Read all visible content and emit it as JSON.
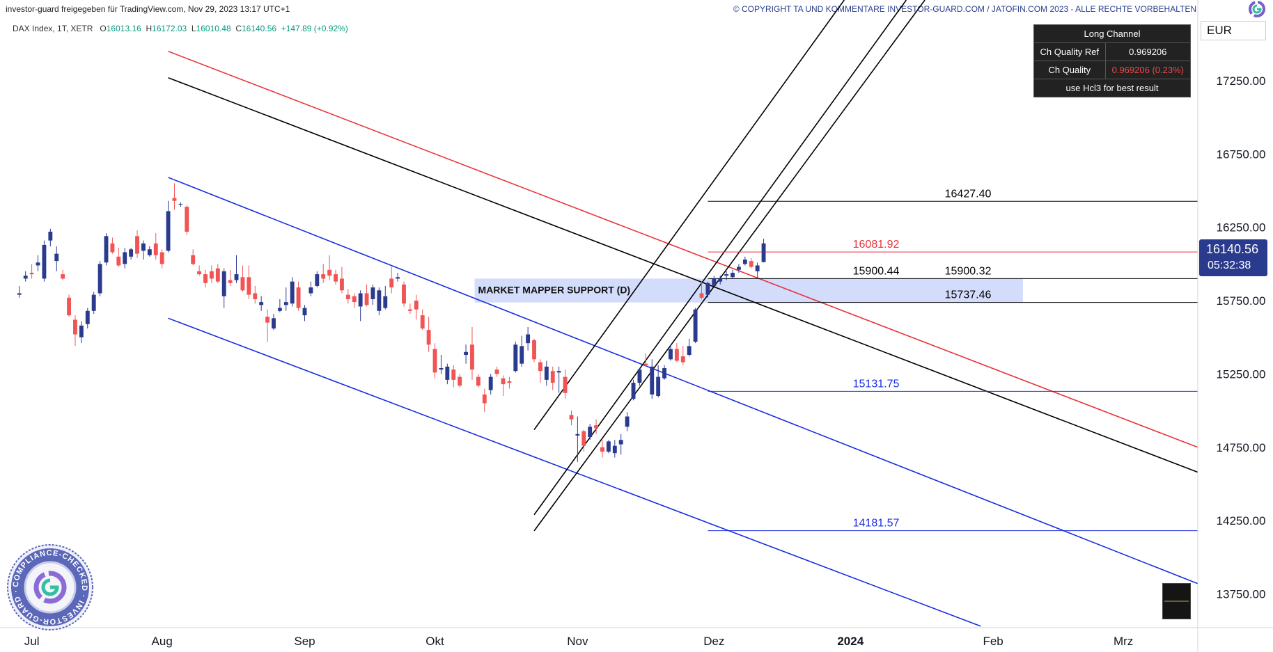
{
  "header": {
    "attribution": "investor-guard freigegeben für TradingView.com, Nov 29, 2023 13:17 UTC+1",
    "copyright": "© COPYRIGHT TA UND KOMMENTARE INVESTOR-GUARD.COM / JATOFIN.COM 2023 - ALLE RECHTE VORBEHALTEN"
  },
  "ohlc": {
    "symbol": "DAX Index, 1T, XETR",
    "o_label": "O",
    "o": "16013.16",
    "h_label": "H",
    "h": "16172.03",
    "l_label": "L",
    "l": "16010.48",
    "c_label": "C",
    "c": "16140.56",
    "change": "+147.89 (+0.92%)"
  },
  "table": {
    "title": "Long Channel",
    "row1_label": "Ch Quality Ref",
    "row1_value": "0.969206",
    "row2_label": "Ch Quality",
    "row2_value": "0.969206 (0.23%)",
    "footer": "use Hcl3 for best result"
  },
  "currency": "EUR",
  "price_tag": {
    "price": "16140.56",
    "countdown": "05:32:38"
  },
  "stamp": {
    "text": "COMPLIANCE-CHECKED · INVESTOR-GUARD ·"
  },
  "colors": {
    "up": "#2a3b8e",
    "down": "#f05454",
    "blue_channel": "#1a2ee0",
    "red_line": "#e8323a",
    "black_line": "#000000",
    "support_fill": "#ccd6fb"
  },
  "chart_data": {
    "type": "candlestick",
    "instrument": "DAX Index, 1T, XETR",
    "ylim": [
      13520,
      17800
    ],
    "ytick_values": [
      13750,
      14250,
      14750,
      15250,
      15750,
      16250,
      16750,
      17250
    ],
    "ytick_labels": [
      "13750.00",
      "14250.00",
      "14750.00",
      "15250.00",
      "15750.00",
      "16250.00",
      "16750.00",
      "17250.00"
    ],
    "xtick_labels": [
      "Jul",
      "Aug",
      "Sep",
      "Okt",
      "Nov",
      "Dez",
      "2024",
      "Feb",
      "Mrz"
    ],
    "x_unit": "trading day index",
    "xtick_positions": [
      2,
      23,
      46,
      67,
      90,
      112,
      134,
      157,
      178
    ],
    "xlim": [
      -2,
      190
    ],
    "levels": [
      {
        "label": "16427.40",
        "value": 16427.4,
        "x_from": 111,
        "color": "#000000"
      },
      {
        "label": "16081.92",
        "value": 16081.92,
        "x_from": 111,
        "color": "#e8323a"
      },
      {
        "label": "15900.44",
        "value": 15900.44,
        "x_from": 111,
        "color": "#000000"
      },
      {
        "label": "15900.32",
        "value": 15900.32,
        "x_from": 111,
        "color": "#000000"
      },
      {
        "label": "15737.46",
        "value": 15737.46,
        "x_from": 111,
        "color": "#000000"
      },
      {
        "label": "15131.75",
        "value": 15131.75,
        "x_from": 111,
        "color": "#1a2ee0"
      },
      {
        "label": "14181.57",
        "value": 14181.57,
        "x_from": 111,
        "color": "#1a2ee0"
      }
    ],
    "support_zone": {
      "label": "MARKET MAPPER SUPPORT (D)",
      "x_from": 73.4,
      "x_to": 161.8,
      "y_from": 15737.46,
      "y_to": 15900.44
    },
    "trendlines": [
      {
        "name": "red-resistance",
        "color": "#e8323a",
        "x1": 24,
        "y1": 17450,
        "x2": 190,
        "y2": 14750
      },
      {
        "name": "black-resistance",
        "color": "#000000",
        "x1": 24,
        "y1": 17270,
        "x2": 190,
        "y2": 14580
      },
      {
        "name": "blue-channel-top",
        "color": "#1a2ee0",
        "x1": 24,
        "y1": 16590,
        "x2": 190,
        "y2": 13820
      },
      {
        "name": "blue-channel-bottom",
        "color": "#1a2ee0",
        "x1": 24,
        "y1": 15630,
        "x2": 155,
        "y2": 13530
      },
      {
        "name": "black-channel-upper",
        "color": "#000000",
        "x1": 83,
        "y1": 14870,
        "x2": 133,
        "y2": 17800
      },
      {
        "name": "black-channel-mid",
        "color": "#000000",
        "x1": 83,
        "y1": 14290,
        "x2": 143,
        "y2": 17800
      },
      {
        "name": "black-channel-lower",
        "color": "#000000",
        "x1": 83,
        "y1": 14180,
        "x2": 146,
        "y2": 17800
      }
    ],
    "candles": [
      [
        0,
        15790,
        15850,
        15770,
        15800
      ],
      [
        1,
        15900,
        15950,
        15880,
        15920
      ],
      [
        2,
        15940,
        16000,
        15900,
        15930
      ],
      [
        3,
        15990,
        16060,
        15950,
        16010
      ],
      [
        4,
        15900,
        16160,
        15880,
        16130
      ],
      [
        5,
        16160,
        16240,
        16120,
        16220
      ],
      [
        6,
        16020,
        16120,
        15950,
        16070
      ],
      [
        7,
        15930,
        15960,
        15890,
        15900
      ],
      [
        8,
        15770,
        15790,
        15640,
        15650
      ],
      [
        9,
        15620,
        15650,
        15440,
        15520
      ],
      [
        10,
        15500,
        15610,
        15460,
        15580
      ],
      [
        11,
        15590,
        15700,
        15560,
        15680
      ],
      [
        12,
        15680,
        15810,
        15660,
        15790
      ],
      [
        13,
        15800,
        16020,
        15780,
        16000
      ],
      [
        14,
        16010,
        16210,
        15990,
        16190
      ],
      [
        15,
        16140,
        16180,
        16070,
        16080
      ],
      [
        16,
        16050,
        16110,
        15980,
        15990
      ],
      [
        17,
        16000,
        16110,
        15970,
        16080
      ],
      [
        18,
        16050,
        16110,
        16030,
        16100
      ],
      [
        19,
        16190,
        16230,
        16040,
        16070
      ],
      [
        20,
        16090,
        16160,
        16030,
        16140
      ],
      [
        21,
        16060,
        16120,
        16050,
        16100
      ],
      [
        22,
        16140,
        16210,
        16030,
        16060
      ],
      [
        23,
        16080,
        16100,
        15970,
        16000
      ],
      [
        24,
        16090,
        16430,
        16080,
        16360
      ],
      [
        25,
        16450,
        16550,
        16370,
        16430
      ],
      [
        26,
        16410,
        16420,
        16390,
        16410
      ],
      [
        27,
        16390,
        16400,
        16200,
        16220
      ],
      [
        28,
        16060,
        16100,
        15990,
        16000
      ],
      [
        29,
        15950,
        15990,
        15920,
        15930
      ],
      [
        30,
        15930,
        15960,
        15840,
        15870
      ],
      [
        31,
        15950,
        15990,
        15870,
        15900
      ],
      [
        32,
        15970,
        16000,
        15870,
        15880
      ],
      [
        33,
        15780,
        15970,
        15700,
        15950
      ],
      [
        34,
        15890,
        15960,
        15850,
        15870
      ],
      [
        35,
        15890,
        16060,
        15870,
        15930
      ],
      [
        36,
        15910,
        15990,
        15810,
        15820
      ],
      [
        37,
        15910,
        15990,
        15760,
        15790
      ],
      [
        38,
        15800,
        15850,
        15730,
        15760
      ],
      [
        39,
        15720,
        15780,
        15680,
        15740
      ],
      [
        40,
        15640,
        15690,
        15470,
        15600
      ],
      [
        41,
        15560,
        15660,
        15550,
        15630
      ],
      [
        42,
        15680,
        15760,
        15670,
        15700
      ],
      [
        43,
        15720,
        15840,
        15680,
        15740
      ],
      [
        44,
        15730,
        15910,
        15710,
        15880
      ],
      [
        45,
        15840,
        15880,
        15680,
        15700
      ],
      [
        46,
        15650,
        15720,
        15610,
        15700
      ],
      [
        47,
        15800,
        15880,
        15780,
        15840
      ],
      [
        48,
        15850,
        15950,
        15840,
        15930
      ],
      [
        49,
        15930,
        16000,
        15870,
        15900
      ],
      [
        50,
        15960,
        16060,
        15890,
        15920
      ],
      [
        51,
        15930,
        15960,
        15860,
        15880
      ],
      [
        52,
        15900,
        15980,
        15800,
        15820
      ],
      [
        53,
        15790,
        15830,
        15730,
        15760
      ],
      [
        54,
        15780,
        15800,
        15700,
        15740
      ],
      [
        55,
        15710,
        15820,
        15610,
        15800
      ],
      [
        56,
        15800,
        15860,
        15710,
        15720
      ],
      [
        57,
        15760,
        15860,
        15720,
        15840
      ],
      [
        58,
        15680,
        15840,
        15650,
        15820
      ],
      [
        59,
        15700,
        15850,
        15690,
        15780
      ],
      [
        60,
        15900,
        15980,
        15800,
        15840
      ],
      [
        61,
        15900,
        15940,
        15880,
        15910
      ],
      [
        62,
        15860,
        15880,
        15710,
        15730
      ],
      [
        63,
        15690,
        15730,
        15660,
        15680
      ],
      [
        64,
        15750,
        15790,
        15620,
        15690
      ],
      [
        65,
        15650,
        15690,
        15550,
        15560
      ],
      [
        66,
        15550,
        15640,
        15400,
        15450
      ],
      [
        67,
        15420,
        15460,
        15220,
        15260
      ],
      [
        68,
        15280,
        15380,
        15250,
        15290
      ],
      [
        69,
        15210,
        15320,
        15180,
        15300
      ],
      [
        70,
        15280,
        15310,
        15160,
        15210
      ],
      [
        71,
        15230,
        15250,
        15160,
        15170
      ],
      [
        72,
        15380,
        15450,
        15320,
        15400
      ],
      [
        73,
        15450,
        15570,
        15210,
        15280
      ],
      [
        74,
        15230,
        15250,
        15160,
        15170
      ],
      [
        75,
        15110,
        15150,
        14990,
        15050
      ],
      [
        76,
        15140,
        15250,
        15110,
        15230
      ],
      [
        77,
        15280,
        15300,
        15230,
        15250
      ],
      [
        78,
        15220,
        15240,
        15100,
        15180
      ],
      [
        79,
        15200,
        15230,
        15150,
        15190
      ],
      [
        80,
        15270,
        15470,
        15260,
        15450
      ],
      [
        81,
        15320,
        15510,
        15300,
        15440
      ],
      [
        82,
        15460,
        15570,
        15410,
        15520
      ],
      [
        83,
        15480,
        15490,
        15330,
        15350
      ],
      [
        84,
        15330,
        15350,
        15190,
        15270
      ],
      [
        85,
        15210,
        15340,
        15170,
        15300
      ],
      [
        86,
        15270,
        15300,
        15140,
        15190
      ],
      [
        87,
        15260,
        15300,
        15120,
        15270
      ],
      [
        88,
        15230,
        15280,
        15080,
        15120
      ],
      [
        89,
        14970,
        15000,
        14900,
        14940
      ],
      [
        90,
        14830,
        14960,
        14650,
        14840
      ],
      [
        91,
        14860,
        14870,
        14720,
        14760
      ],
      [
        92,
        14820,
        14910,
        14800,
        14890
      ],
      [
        93,
        14900,
        14940,
        14840,
        14880
      ],
      [
        94,
        14750,
        14800,
        14680,
        14720
      ],
      [
        95,
        14720,
        14800,
        14710,
        14790
      ],
      [
        96,
        14710,
        14800,
        14680,
        14760
      ],
      [
        97,
        14770,
        14840,
        14700,
        14800
      ],
      [
        98,
        14890,
        14990,
        14860,
        14960
      ],
      [
        99,
        15080,
        15210,
        15070,
        15190
      ],
      [
        100,
        15190,
        15290,
        15170,
        15280
      ],
      [
        101,
        15320,
        15390,
        15300,
        15310
      ],
      [
        102,
        15110,
        15350,
        15080,
        15300
      ],
      [
        103,
        15100,
        15310,
        15090,
        15230
      ],
      [
        104,
        15220,
        15310,
        15210,
        15290
      ],
      [
        105,
        15350,
        15450,
        15340,
        15420
      ],
      [
        106,
        15420,
        15460,
        15330,
        15340
      ],
      [
        107,
        15370,
        15440,
        15310,
        15330
      ],
      [
        108,
        15380,
        15490,
        15370,
        15440
      ],
      [
        109,
        15470,
        15700,
        15460,
        15690
      ],
      [
        110,
        15800,
        15880,
        15760,
        15770
      ],
      [
        111,
        15790,
        15880,
        15770,
        15870
      ],
      [
        112,
        15850,
        15920,
        15850,
        15900
      ],
      [
        113,
        15880,
        15920,
        15860,
        15900
      ],
      [
        114,
        15920,
        15950,
        15890,
        15930
      ],
      [
        115,
        15910,
        15960,
        15900,
        15940
      ],
      [
        116,
        15960,
        16000,
        15940,
        15980
      ],
      [
        117,
        16000,
        16050,
        15990,
        16030
      ],
      [
        118,
        16020,
        16040,
        15970,
        15980
      ],
      [
        119,
        15950,
        16010,
        15900,
        15990
      ],
      [
        120,
        16013.16,
        16172.03,
        16010.48,
        16140.56
      ]
    ]
  }
}
